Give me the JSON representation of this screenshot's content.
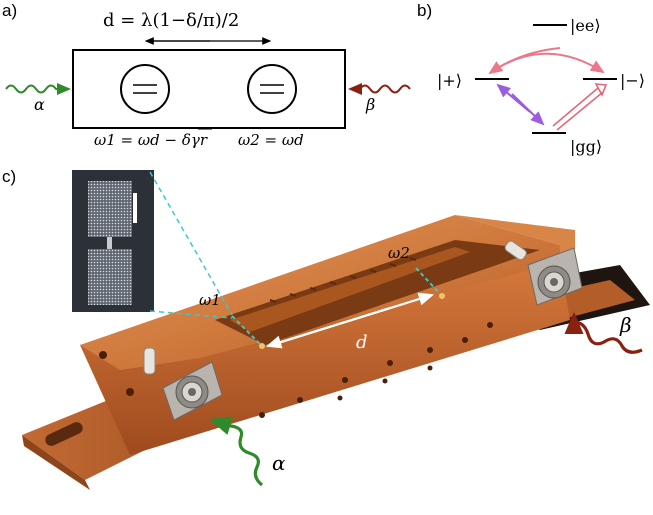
{
  "panel_labels": {
    "a": "a)",
    "b": "b)",
    "c": "c)"
  },
  "panel_a": {
    "distance_formula": "d = λ(1−δ/π)/2",
    "omega1_formula": "ω1 = ωd − δγr",
    "omega2_formula": "ω2 = ωd",
    "input_left": "α",
    "input_right": "β"
  },
  "panel_b": {
    "state_ee": "|ee⟩",
    "state_plus": "|+⟩",
    "state_minus": "|−⟩",
    "state_gg": "|gg⟩",
    "colors": {
      "pink": "#e9788b",
      "purple": "#9b5ce0",
      "red_double": "#e06a7a"
    }
  },
  "panel_c": {
    "omega1": "ω1",
    "omega2": "ω2",
    "distance": "d",
    "alpha": "α",
    "beta": "β",
    "colors": {
      "copper": "#c86a35",
      "alpha_arrow": "#2f8a2a",
      "beta_arrow": "#8b1f10",
      "dashed": "#3cc9c9"
    }
  }
}
